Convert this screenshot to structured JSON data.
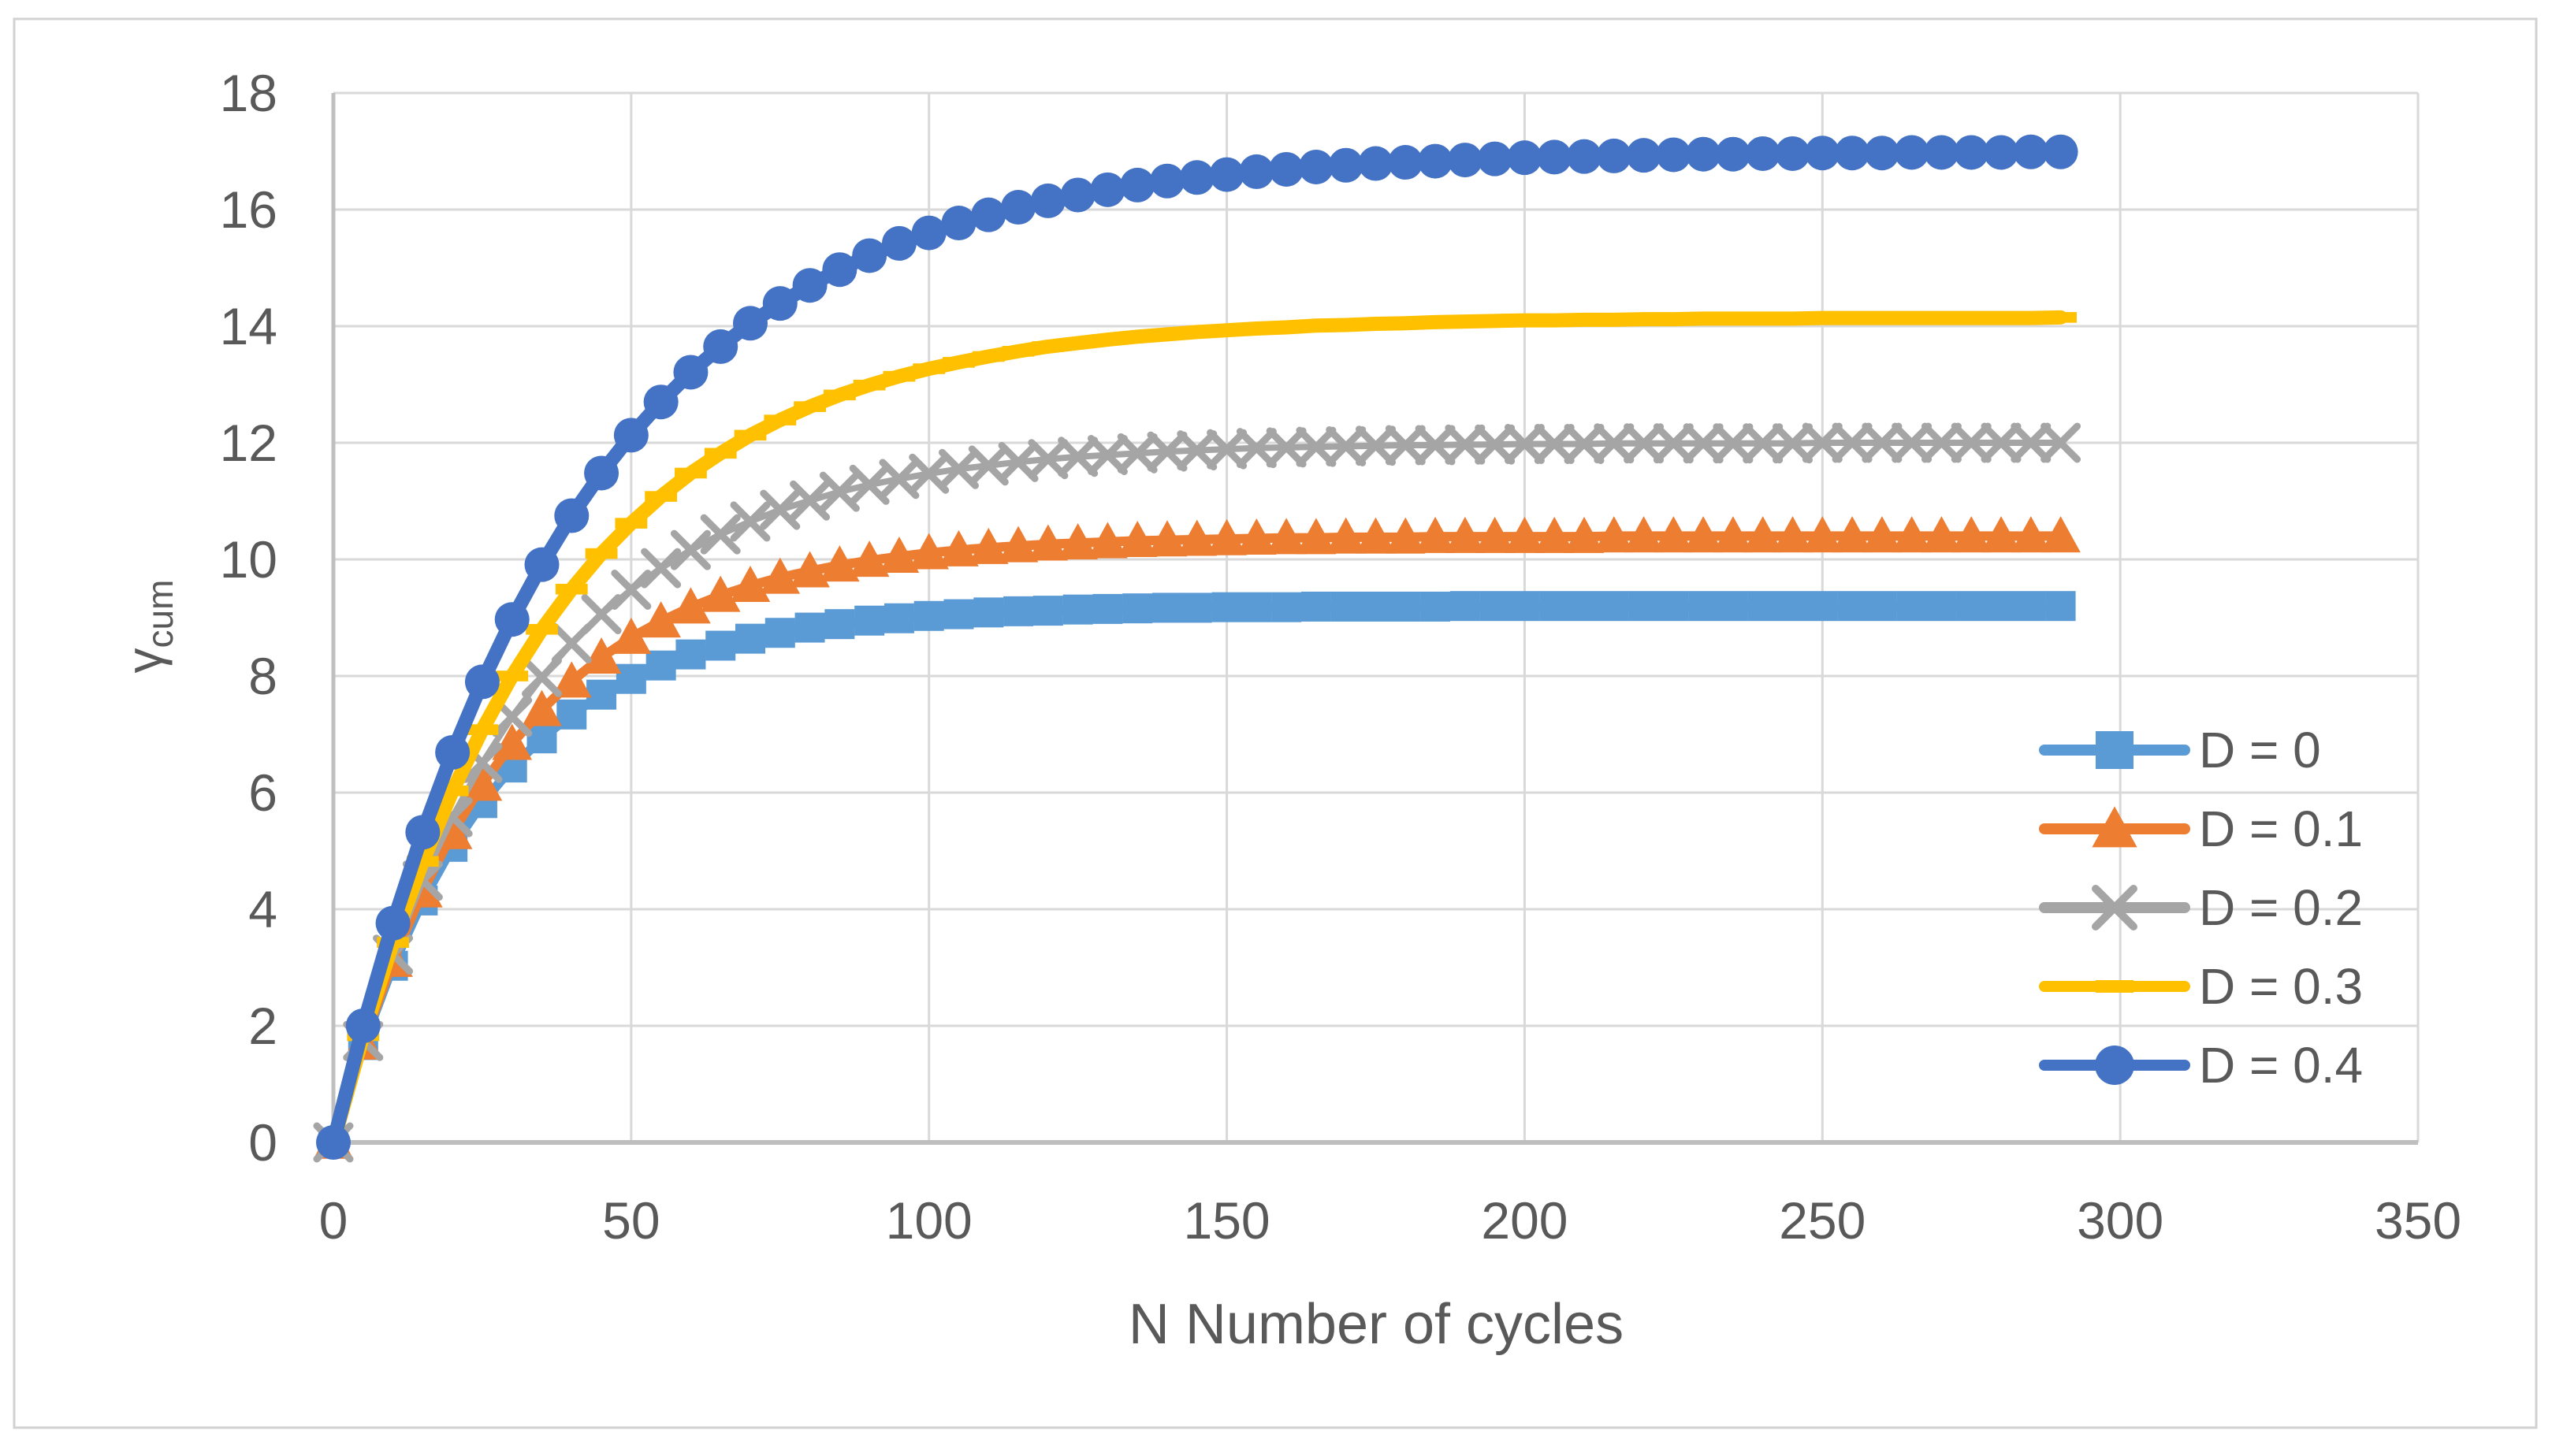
{
  "chart_style": {
    "background": "#FFFFFF",
    "outer_border_color": "#D2D2D2",
    "grid_color": "#D9D9D9",
    "axis_line_color": "#BFBFBF",
    "tick_label_color": "#595959",
    "axis_title_color": "#595959",
    "legend_text_color": "#595959"
  },
  "chart_data": {
    "type": "line",
    "title": "",
    "xlabel": "N Number of cycles",
    "ylabel": {
      "base": "γ",
      "sub": "cum"
    },
    "xlim": [
      0,
      350
    ],
    "ylim": [
      0,
      18
    ],
    "xticks": [
      0,
      50,
      100,
      150,
      200,
      250,
      300,
      350
    ],
    "yticks": [
      0,
      2,
      4,
      6,
      8,
      10,
      12,
      14,
      16,
      18
    ],
    "grid": true,
    "legend_position": "inside-right",
    "x": [
      0,
      5,
      10,
      15,
      20,
      25,
      30,
      35,
      40,
      45,
      50,
      55,
      60,
      65,
      70,
      75,
      80,
      85,
      90,
      95,
      100,
      105,
      110,
      115,
      120,
      125,
      130,
      135,
      140,
      145,
      150,
      155,
      160,
      165,
      170,
      175,
      180,
      185,
      190,
      195,
      200,
      205,
      210,
      215,
      220,
      225,
      230,
      235,
      240,
      245,
      250,
      255,
      260,
      265,
      270,
      275,
      280,
      285,
      290
    ],
    "series": [
      {
        "name": "D = 0",
        "color": "#5B9BD5",
        "marker": "square",
        "values": [
          0,
          1.67,
          3.03,
          4.15,
          5.07,
          5.82,
          6.43,
          6.93,
          7.34,
          7.68,
          7.95,
          8.18,
          8.37,
          8.52,
          8.64,
          8.74,
          8.83,
          8.89,
          8.95,
          8.99,
          9.03,
          9.06,
          9.09,
          9.11,
          9.12,
          9.14,
          9.15,
          9.16,
          9.17,
          9.17,
          9.18,
          9.18,
          9.18,
          9.19,
          9.19,
          9.19,
          9.19,
          9.19,
          9.2,
          9.2,
          9.2,
          9.2,
          9.2,
          9.2,
          9.2,
          9.2,
          9.2,
          9.2,
          9.2,
          9.2,
          9.2,
          9.2,
          9.2,
          9.2,
          9.2,
          9.2,
          9.2,
          9.2,
          9.2
        ]
      },
      {
        "name": "D = 0.1",
        "color": "#ED7D31",
        "marker": "triangle",
        "values": [
          0,
          1.7,
          3.12,
          4.31,
          5.31,
          6.14,
          6.84,
          7.42,
          7.91,
          8.32,
          8.66,
          8.94,
          9.18,
          9.38,
          9.55,
          9.69,
          9.8,
          9.9,
          9.98,
          10.05,
          10.11,
          10.16,
          10.2,
          10.23,
          10.26,
          10.28,
          10.3,
          10.32,
          10.33,
          10.34,
          10.35,
          10.36,
          10.37,
          10.37,
          10.38,
          10.38,
          10.38,
          10.39,
          10.39,
          10.39,
          10.39,
          10.39,
          10.39,
          10.4,
          10.4,
          10.4,
          10.4,
          10.4,
          10.4,
          10.4,
          10.4,
          10.4,
          10.4,
          10.4,
          10.4,
          10.4,
          10.4,
          10.4,
          10.4
        ]
      },
      {
        "name": "D = 0.2",
        "color": "#A5A5A5",
        "marker": "x",
        "values": [
          0,
          1.74,
          3.22,
          4.49,
          5.58,
          6.51,
          7.3,
          7.98,
          8.56,
          9.06,
          9.48,
          9.85,
          10.16,
          10.43,
          10.65,
          10.85,
          11.01,
          11.16,
          11.28,
          11.38,
          11.47,
          11.55,
          11.61,
          11.67,
          11.72,
          11.76,
          11.79,
          11.82,
          11.85,
          11.87,
          11.89,
          11.91,
          11.92,
          11.93,
          11.94,
          11.95,
          11.96,
          11.96,
          11.97,
          11.97,
          11.98,
          11.98,
          11.98,
          11.99,
          11.99,
          11.99,
          11.99,
          11.99,
          11.99,
          11.99,
          12.0,
          12.0,
          12.0,
          12.0,
          12.0,
          12.0,
          12.0,
          12.0,
          12.0
        ]
      },
      {
        "name": "D = 0.3",
        "color": "#FFC000",
        "marker": "dash",
        "values": [
          0,
          1.83,
          3.43,
          4.82,
          6.03,
          7.08,
          8.0,
          8.8,
          9.49,
          10.1,
          10.62,
          11.08,
          11.48,
          11.82,
          12.13,
          12.39,
          12.62,
          12.82,
          12.99,
          13.14,
          13.27,
          13.38,
          13.48,
          13.57,
          13.65,
          13.71,
          13.77,
          13.82,
          13.86,
          13.9,
          13.93,
          13.96,
          13.98,
          14.01,
          14.02,
          14.04,
          14.05,
          14.07,
          14.08,
          14.09,
          14.1,
          14.1,
          14.11,
          14.11,
          14.12,
          14.12,
          14.13,
          14.13,
          14.13,
          14.13,
          14.14,
          14.14,
          14.14,
          14.14,
          14.14,
          14.14,
          14.14,
          14.14,
          14.15
        ]
      },
      {
        "name": "D = 0.4",
        "color": "#4472C4",
        "marker": "circle",
        "values": [
          0,
          2.0,
          3.76,
          5.32,
          6.69,
          7.9,
          8.97,
          9.91,
          10.75,
          11.48,
          12.13,
          12.7,
          13.21,
          13.65,
          14.05,
          14.39,
          14.7,
          14.97,
          15.21,
          15.42,
          15.6,
          15.77,
          15.91,
          16.04,
          16.15,
          16.25,
          16.34,
          16.42,
          16.49,
          16.55,
          16.6,
          16.65,
          16.69,
          16.73,
          16.76,
          16.79,
          16.81,
          16.83,
          16.85,
          16.87,
          16.89,
          16.9,
          16.91,
          16.92,
          16.93,
          16.94,
          16.95,
          16.95,
          16.96,
          16.96,
          16.97,
          16.97,
          16.97,
          16.98,
          16.98,
          16.98,
          16.98,
          16.99,
          16.99
        ]
      }
    ]
  }
}
